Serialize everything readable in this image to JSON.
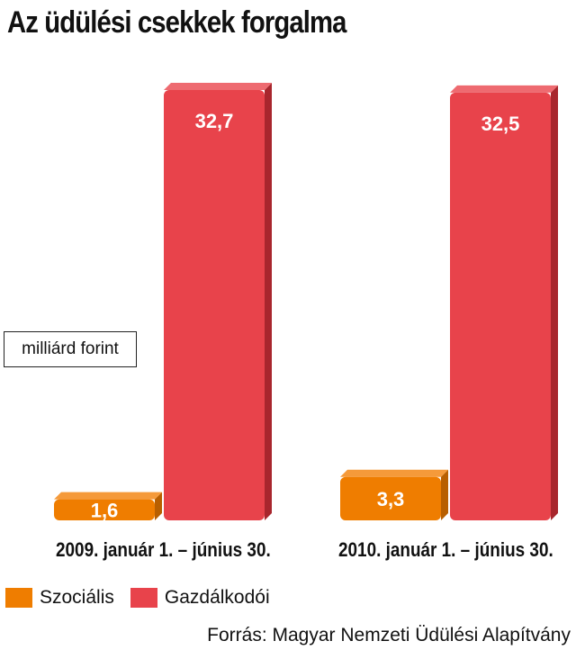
{
  "title": "Az üdülési csekkek forgalma",
  "unit_label": "milliárd forint",
  "source": "Forrás: Magyar Nemzeti Üdülési Alapítvány",
  "colors": {
    "szocialis": "#ef7d00",
    "gazdalkodoi": "#e8434b"
  },
  "chart_data": {
    "type": "bar",
    "categories": [
      "2009. január 1. – június 30.",
      "2010. január 1. – június 30."
    ],
    "series": [
      {
        "name": "Szociális",
        "values": [
          1.6,
          3.3
        ],
        "labels": [
          "1,6",
          "3,3"
        ]
      },
      {
        "name": "Gazdálkodói",
        "values": [
          32.7,
          32.5
        ],
        "labels": [
          "32,7",
          "32,5"
        ]
      }
    ],
    "title": "Az üdülési csekkek forgalma",
    "ylabel": "milliárd forint",
    "legend": "bottom-left"
  }
}
